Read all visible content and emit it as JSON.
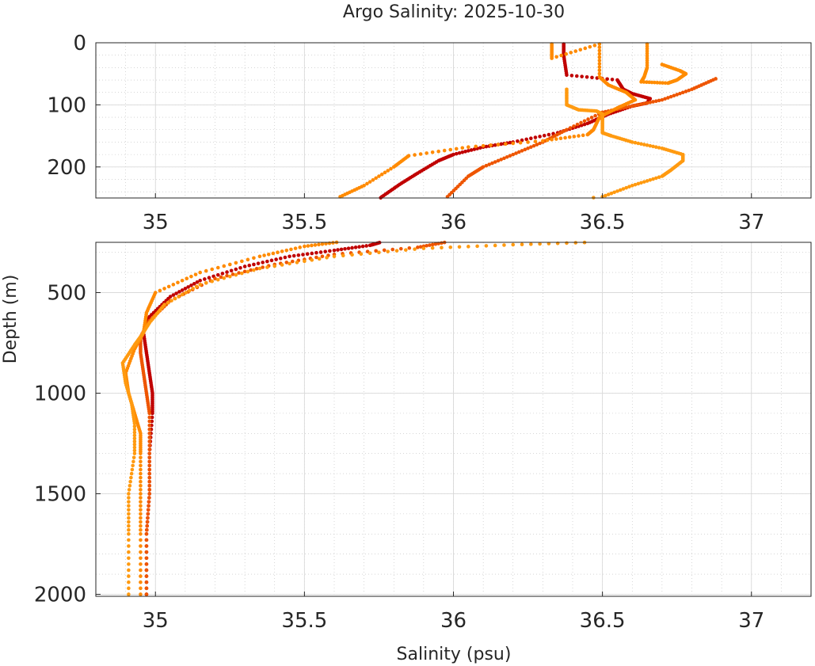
{
  "chart_data": {
    "type": "scatter",
    "title": "Argo Salinity: 2025-10-30",
    "xlabel": "Salinity (psu)",
    "ylabel": "Depth (m)",
    "y_axis_inverted": true,
    "grid": true,
    "minor_grid": true,
    "legend": "none",
    "panels": [
      {
        "name": "upper",
        "xlim": [
          34.8,
          37.2
        ],
        "ylim": [
          250,
          0
        ],
        "x_ticks": [
          35,
          35.5,
          36,
          36.5,
          37
        ],
        "x_tick_labels": [
          "35",
          "35.5",
          "36",
          "36.5",
          "37"
        ],
        "y_ticks": [
          0,
          100,
          200
        ],
        "y_tick_labels": [
          "0",
          "100",
          "200"
        ]
      },
      {
        "name": "lower",
        "xlim": [
          34.8,
          37.2
        ],
        "ylim": [
          2010,
          250
        ],
        "x_ticks": [
          35,
          35.5,
          36,
          36.5,
          37
        ],
        "x_tick_labels": [
          "35",
          "35.5",
          "36",
          "36.5",
          "37"
        ],
        "y_ticks": [
          500,
          1000,
          1500,
          2000
        ],
        "y_tick_labels": [
          "500",
          "1000",
          "1500",
          "2000"
        ]
      }
    ],
    "series": [
      {
        "color": "#c00000",
        "points": [
          [
            36.37,
            2
          ],
          [
            36.37,
            20
          ],
          [
            36.38,
            52
          ],
          [
            36.55,
            60
          ],
          [
            36.57,
            75
          ],
          [
            36.6,
            82
          ],
          [
            36.66,
            90
          ],
          [
            36.65,
            97
          ],
          [
            36.6,
            102
          ],
          [
            36.52,
            115
          ],
          [
            36.45,
            130
          ],
          [
            36.35,
            145
          ],
          [
            36.2,
            160
          ],
          [
            36.1,
            168
          ],
          [
            36.0,
            180
          ],
          [
            35.95,
            190
          ],
          [
            35.88,
            210
          ],
          [
            35.82,
            228
          ],
          [
            35.76,
            248
          ],
          [
            35.72,
            265
          ],
          [
            35.6,
            290
          ],
          [
            35.45,
            320
          ],
          [
            35.3,
            370
          ],
          [
            35.15,
            440
          ],
          [
            35.05,
            520
          ],
          [
            34.98,
            620
          ],
          [
            34.96,
            700
          ],
          [
            34.97,
            800
          ],
          [
            34.98,
            900
          ],
          [
            34.99,
            1000
          ],
          [
            34.99,
            1100
          ],
          [
            34.98,
            1300
          ],
          [
            34.98,
            1500
          ],
          [
            34.97,
            1700
          ],
          [
            34.97,
            2000
          ]
        ]
      },
      {
        "color": "#ee5500",
        "points": [
          [
            36.88,
            58
          ],
          [
            36.8,
            75
          ],
          [
            36.7,
            92
          ],
          [
            36.6,
            102
          ],
          [
            36.5,
            112
          ],
          [
            36.38,
            140
          ],
          [
            36.3,
            160
          ],
          [
            36.2,
            180
          ],
          [
            36.1,
            200
          ],
          [
            36.05,
            215
          ],
          [
            35.98,
            248
          ],
          [
            35.88,
            275
          ],
          [
            35.6,
            310
          ],
          [
            35.4,
            360
          ],
          [
            35.2,
            430
          ],
          [
            35.05,
            540
          ],
          [
            34.98,
            640
          ],
          [
            34.95,
            720
          ],
          [
            34.95,
            800
          ],
          [
            34.96,
            900
          ],
          [
            34.97,
            1000
          ],
          [
            34.98,
            1100
          ],
          [
            34.98,
            1300
          ],
          [
            34.98,
            1500
          ],
          [
            34.97,
            1700
          ],
          [
            34.97,
            2000
          ]
        ]
      },
      {
        "color": "#ff8a00",
        "points": [
          [
            36.33,
            2
          ],
          [
            36.33,
            25
          ],
          [
            36.49,
            2
          ],
          [
            36.49,
            55
          ],
          [
            36.52,
            68
          ],
          [
            36.58,
            80
          ],
          [
            36.61,
            92
          ],
          [
            36.55,
            105
          ],
          [
            36.49,
            120
          ],
          [
            36.47,
            140
          ],
          [
            36.45,
            148
          ],
          [
            36.3,
            158
          ],
          [
            36.05,
            168
          ],
          [
            35.85,
            182
          ],
          [
            35.8,
            200
          ],
          [
            35.7,
            230
          ],
          [
            35.62,
            248
          ],
          [
            35.5,
            270
          ],
          [
            35.35,
            320
          ],
          [
            35.15,
            400
          ],
          [
            35.0,
            500
          ],
          [
            34.97,
            600
          ],
          [
            34.96,
            700
          ],
          [
            34.93,
            780
          ],
          [
            34.9,
            900
          ],
          [
            34.91,
            1000
          ],
          [
            34.93,
            1100
          ],
          [
            34.95,
            1200
          ],
          [
            34.95,
            1300
          ],
          [
            34.95,
            1500
          ],
          [
            34.95,
            1700
          ],
          [
            34.95,
            2000
          ]
        ]
      },
      {
        "color": "#ff9a10",
        "points": [
          [
            36.38,
            75
          ],
          [
            36.38,
            100
          ],
          [
            36.42,
            108
          ],
          [
            36.48,
            110
          ],
          [
            36.5,
            115
          ],
          [
            36.5,
            125
          ],
          [
            36.5,
            145
          ],
          [
            36.53,
            150
          ],
          [
            36.6,
            160
          ],
          [
            36.7,
            170
          ],
          [
            36.77,
            180
          ],
          [
            36.77,
            190
          ],
          [
            36.73,
            205
          ],
          [
            36.7,
            215
          ],
          [
            36.6,
            230
          ],
          [
            36.5,
            248
          ],
          [
            36.2,
            262
          ],
          [
            35.9,
            280
          ],
          [
            35.6,
            320
          ],
          [
            35.35,
            380
          ],
          [
            35.15,
            460
          ],
          [
            35.03,
            560
          ],
          [
            34.98,
            650
          ],
          [
            34.95,
            720
          ],
          [
            34.93,
            760
          ],
          [
            34.89,
            850
          ],
          [
            34.9,
            950
          ],
          [
            34.92,
            1050
          ],
          [
            34.93,
            1150
          ],
          [
            34.93,
            1300
          ],
          [
            34.91,
            1500
          ],
          [
            34.91,
            1700
          ],
          [
            34.91,
            2000
          ]
        ]
      },
      {
        "color": "#ff8c00",
        "points": [
          [
            36.65,
            2
          ],
          [
            36.65,
            40
          ],
          [
            36.64,
            55
          ],
          [
            36.63,
            63
          ],
          [
            36.72,
            65
          ],
          [
            36.75,
            60
          ],
          [
            36.78,
            50
          ],
          [
            36.76,
            45
          ],
          [
            36.7,
            35
          ]
        ]
      }
    ]
  }
}
